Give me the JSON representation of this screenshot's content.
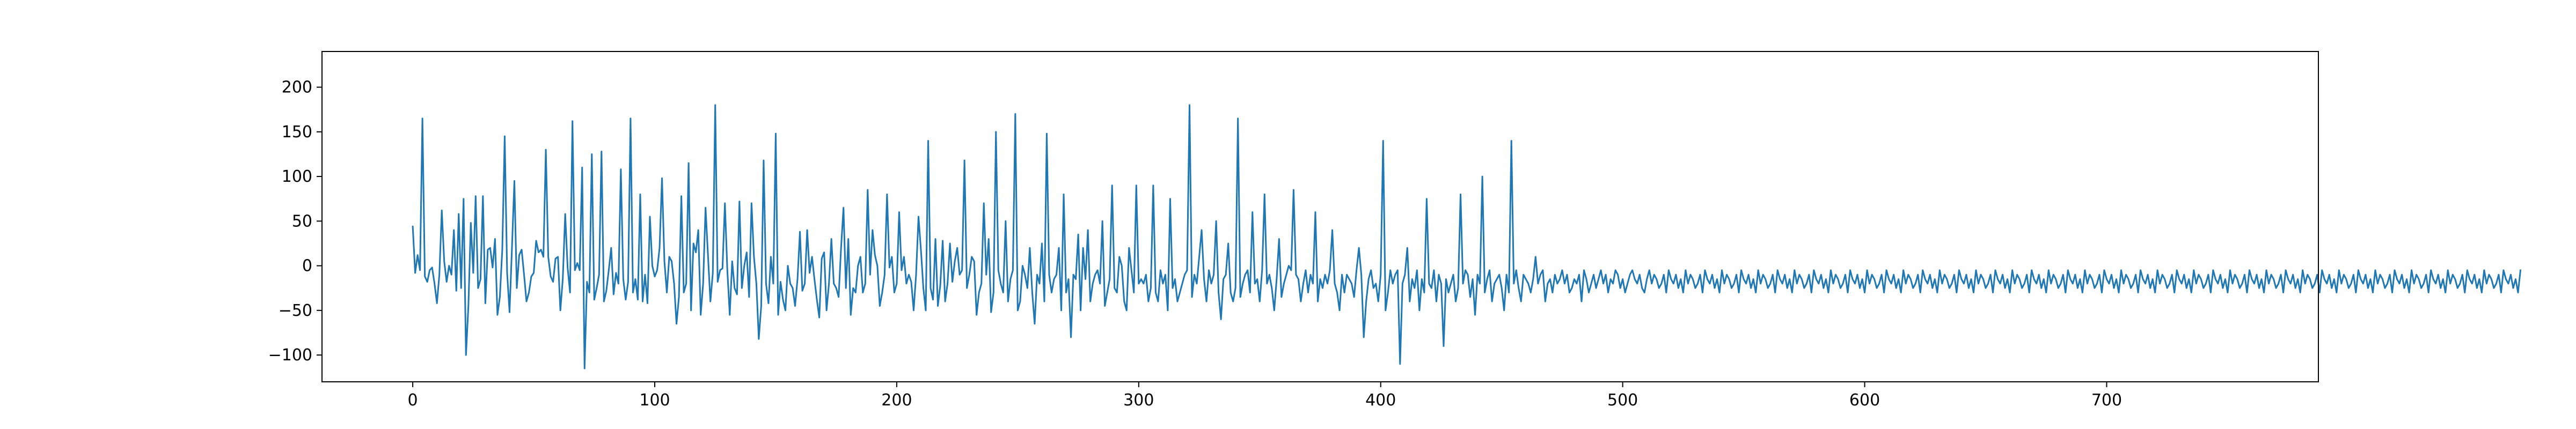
{
  "chart_data": {
    "type": "line",
    "title": "",
    "xlabel": "",
    "ylabel": "",
    "xlim": [
      -37.5,
      787.5
    ],
    "ylim": [
      -130,
      240
    ],
    "x_ticks": [
      0,
      100,
      200,
      300,
      400,
      500,
      600,
      700
    ],
    "y_ticks": [
      -100,
      -50,
      0,
      50,
      100,
      150,
      200
    ],
    "x_tick_labels": [
      "0",
      "100",
      "200",
      "300",
      "400",
      "500",
      "600",
      "700"
    ],
    "y_tick_labels": [
      "−100",
      "−50",
      "0",
      "50",
      "100",
      "150",
      "200"
    ],
    "grid": false,
    "legend": "none",
    "line_color": "#1f77b4",
    "series": [
      {
        "name": "",
        "x_start": 0,
        "x_step": 1,
        "values": [
          44,
          -8,
          12,
          -5,
          165,
          -12,
          -18,
          -5,
          -2,
          -20,
          -42,
          -10,
          62,
          5,
          -18,
          0,
          -10,
          40,
          -28,
          58,
          -25,
          75,
          -100,
          -45,
          48,
          -8,
          78,
          -25,
          -15,
          78,
          -42,
          18,
          20,
          -2,
          30,
          -55,
          -35,
          18,
          145,
          -8,
          -52,
          20,
          95,
          -25,
          12,
          18,
          -10,
          -40,
          -30,
          -12,
          -8,
          28,
          15,
          18,
          10,
          130,
          10,
          -12,
          -18,
          8,
          10,
          -50,
          -15,
          58,
          -2,
          -30,
          162,
          -5,
          3,
          -5,
          110,
          -115,
          -18,
          -30,
          125,
          -38,
          -25,
          -10,
          128,
          -40,
          -28,
          -5,
          20,
          -32,
          -8,
          -20,
          108,
          -15,
          -38,
          -18,
          165,
          -30,
          -15,
          -38,
          80,
          -40,
          -10,
          -42,
          55,
          0,
          -12,
          -5,
          20,
          98,
          5,
          -30,
          10,
          5,
          -20,
          -65,
          -35,
          78,
          -30,
          -20,
          115,
          -50,
          25,
          15,
          40,
          -55,
          -20,
          65,
          12,
          -40,
          -8,
          180,
          -18,
          -5,
          -3,
          70,
          -5,
          -55,
          5,
          -25,
          -32,
          72,
          -25,
          0,
          15,
          -35,
          70,
          10,
          -20,
          -82,
          -45,
          118,
          -20,
          -42,
          10,
          -20,
          148,
          -55,
          -18,
          -38,
          -50,
          0,
          -20,
          -25,
          -45,
          -15,
          38,
          -28,
          -20,
          40,
          -8,
          10,
          -15,
          -38,
          -58,
          8,
          15,
          -50,
          -20,
          30,
          -20,
          -25,
          -35,
          20,
          65,
          -25,
          30,
          -55,
          -25,
          -30,
          0,
          10,
          -30,
          -20,
          85,
          -10,
          40,
          12,
          0,
          -45,
          -30,
          -10,
          80,
          -2,
          10,
          -30,
          -20,
          60,
          -5,
          10,
          -20,
          -10,
          -18,
          -50,
          -10,
          55,
          18,
          -25,
          -50,
          140,
          -25,
          -38,
          30,
          -45,
          -22,
          28,
          -40,
          -20,
          25,
          -18,
          5,
          20,
          -10,
          -5,
          118,
          -25,
          -10,
          10,
          5,
          -55,
          -30,
          -20,
          70,
          -10,
          30,
          -52,
          -30,
          150,
          -5,
          -20,
          -30,
          50,
          -40,
          -15,
          -5,
          170,
          -50,
          -40,
          0,
          -10,
          -25,
          20,
          -30,
          -65,
          -10,
          -20,
          25,
          -40,
          148,
          -10,
          -30,
          -15,
          -10,
          20,
          -50,
          80,
          -30,
          -15,
          -80,
          -10,
          -15,
          35,
          -50,
          20,
          -15,
          40,
          -40,
          -20,
          -10,
          -5,
          -20,
          50,
          -45,
          -30,
          -15,
          90,
          -25,
          -30,
          10,
          0,
          -40,
          -50,
          20,
          -5,
          -30,
          90,
          -20,
          -15,
          -20,
          -10,
          -40,
          -25,
          90,
          -30,
          -40,
          -5,
          -20,
          -10,
          -50,
          75,
          -25,
          -15,
          -40,
          -30,
          -20,
          -10,
          -5,
          180,
          -35,
          -10,
          -20,
          10,
          40,
          -15,
          -40,
          -5,
          -20,
          -10,
          50,
          -30,
          -60,
          -15,
          -10,
          25,
          -30,
          -40,
          -25,
          165,
          -35,
          -20,
          -10,
          -5,
          -30,
          60,
          -20,
          -15,
          -40,
          -5,
          80,
          -20,
          -10,
          -25,
          -50,
          -15,
          30,
          -35,
          -20,
          -10,
          0,
          -5,
          85,
          -10,
          -15,
          -40,
          -20,
          -5,
          -30,
          -10,
          -20,
          60,
          -40,
          -15,
          -25,
          -10,
          -20,
          -5,
          40,
          -20,
          -30,
          -50,
          -10,
          -30,
          -10,
          -15,
          -20,
          -35,
          -5,
          20,
          -10,
          -80,
          -40,
          -15,
          -5,
          -25,
          -20,
          -40,
          -10,
          140,
          -50,
          -30,
          -5,
          -20,
          -10,
          -5,
          -110,
          -20,
          -10,
          20,
          -40,
          -15,
          -25,
          -5,
          -50,
          -15,
          -30,
          75,
          -20,
          -25,
          -5,
          -40,
          -10,
          -20,
          -90,
          -15,
          -30,
          -20,
          -10,
          -40,
          -25,
          80,
          -20,
          -5,
          -10,
          -35,
          -15,
          -55,
          -10,
          -20,
          100,
          -30,
          -15,
          -5,
          -40,
          -20,
          -15,
          -10,
          -25,
          -50,
          -10,
          -30,
          140,
          -20,
          -5,
          -25,
          -40,
          -10,
          -15,
          -20,
          -30,
          -15,
          10,
          -20,
          -10,
          -5,
          -40,
          -20,
          -15,
          -30,
          -10,
          -20,
          -15,
          -5,
          -20,
          -10,
          -30,
          -25,
          -15,
          -20,
          -10,
          -40,
          -5,
          -15,
          -30,
          -20,
          -10,
          -25,
          -15,
          -5,
          -20,
          -10,
          -30,
          -15,
          -20,
          -5,
          -10,
          -25,
          -15,
          -30,
          -20,
          -10,
          -5,
          -15,
          -20,
          -10,
          -25,
          -30,
          -15,
          -5,
          -20,
          -10,
          -15,
          -25,
          -20,
          -10,
          -30,
          -5,
          -15,
          -20,
          -10,
          -25,
          -15,
          -30,
          -5,
          -20,
          -10,
          -15,
          -25,
          -20,
          -10,
          -30,
          -5,
          -15,
          -20,
          -10,
          -25,
          -15,
          -30,
          -5,
          -20,
          -10,
          -15,
          -25,
          -20,
          -10,
          -30,
          -5,
          -15,
          -20,
          -10,
          -25,
          -15,
          -30,
          -5,
          -20,
          -10,
          -15,
          -25,
          -20,
          -10,
          -30,
          -5,
          -15,
          -20,
          -10,
          -25,
          -15,
          -30,
          -5,
          -20,
          -10,
          -15,
          -25,
          -20,
          -10,
          -30,
          -5,
          -15,
          -20,
          -10,
          -25,
          -15,
          -30,
          -5,
          -20,
          -10,
          -15,
          -25,
          -20,
          -10,
          -30,
          -5,
          -15,
          -20,
          -10,
          -25,
          -15,
          -30,
          -5,
          -20,
          -10,
          -15,
          -25,
          -20,
          -10,
          -30,
          -5,
          -15,
          -20,
          -10,
          -25,
          -15,
          -30,
          -5,
          -20,
          -10,
          -15,
          -25,
          -20,
          -10,
          -30,
          -5,
          -15,
          -20,
          -10,
          -25,
          -15,
          -30,
          -5,
          -20,
          -10,
          -15,
          -25,
          -20,
          -10,
          -30,
          -5,
          -15,
          -20,
          -10,
          -25,
          -15,
          -30,
          -5,
          -20,
          -10,
          -15,
          -25,
          -20,
          -10,
          -30,
          -5,
          -15,
          -20,
          -10,
          -25,
          -15,
          -30,
          -5,
          -20,
          -10,
          -15,
          -25,
          -20,
          -10,
          -30,
          -5,
          -15,
          -20,
          -10,
          -25,
          -15,
          -30,
          -5,
          -20,
          -10,
          -15,
          -25,
          -20,
          -10,
          -30,
          -5,
          -15,
          -20,
          -10,
          -25,
          -15,
          -30,
          -5,
          -20,
          -10,
          -15,
          -25,
          -20,
          -10,
          -30,
          -5,
          -15,
          -20,
          -10,
          -25,
          -15,
          -30,
          -5,
          -20,
          -10,
          -15,
          -25,
          -20,
          -10,
          -30,
          -5,
          -15,
          -20,
          -10,
          -25,
          -15,
          -30,
          -5,
          -20,
          -10,
          -15,
          -25,
          -20,
          -10,
          -30,
          -5,
          -15,
          -20,
          -10,
          -25,
          -15,
          -30,
          -5,
          -20,
          -10,
          -15,
          -25,
          -20,
          -10,
          -30,
          -5,
          -15,
          -20,
          -10,
          -25,
          -15,
          -30,
          -5,
          -20,
          -10,
          -15,
          -25,
          -20,
          -10,
          -30,
          -5,
          -15,
          -20,
          -10,
          -25,
          -15,
          -30,
          -5,
          -20,
          -10,
          -15,
          -25,
          -20,
          -10,
          -30,
          -5,
          -15,
          -20,
          -10,
          -25,
          -15,
          -30,
          -5,
          -20,
          -10,
          -15,
          -25,
          -20,
          -10,
          -30,
          -5,
          -15,
          -20,
          -10,
          -25,
          -15,
          -30,
          -5,
          -20,
          -10,
          -15,
          -25,
          -20,
          -10,
          -30,
          -5,
          -15,
          -20,
          -10,
          -25,
          -15,
          -30,
          -5,
          -20,
          -10,
          -15,
          -25,
          -20,
          -10,
          -30,
          -5,
          -15,
          -20,
          -10,
          -25,
          -15,
          -30,
          -5,
          -20,
          -10,
          -15,
          -25,
          -20,
          -10,
          -30,
          -5,
          -15,
          -20,
          -10,
          -25,
          -15,
          -30,
          -5,
          -20,
          -10,
          -15,
          -25,
          -20,
          -10,
          -30,
          -5,
          -15,
          -20,
          -10,
          -25,
          -15,
          -30,
          -5,
          -20,
          -10,
          -15,
          -25,
          -20,
          -10,
          -30,
          -5,
          -15,
          -20,
          -10,
          -25,
          -15,
          -30,
          -5
        ]
      }
    ]
  }
}
